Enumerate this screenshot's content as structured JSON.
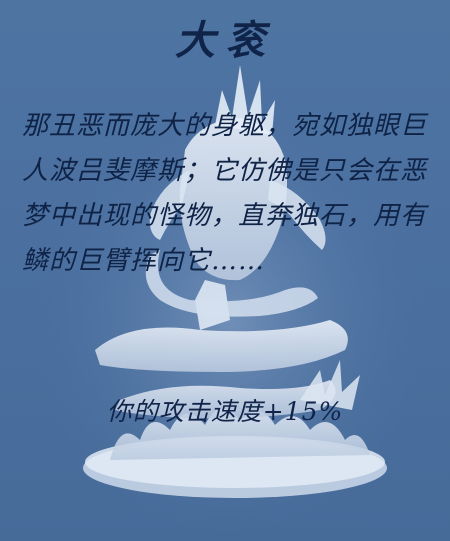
{
  "card": {
    "title": "大衮",
    "lore": "那丑恶而庞大的身躯，宛如独眼巨人波吕斐摩斯；它仿佛是只会在恶梦中出现的怪物，直奔独石，用有鳞的巨臂挥向它……",
    "effect": "你的攻击速度+15%",
    "illustration": "dagon-statue-figurine",
    "colors": {
      "background": "#4b70a0",
      "text": "#10244a",
      "statue": "#dfe8f4"
    }
  }
}
